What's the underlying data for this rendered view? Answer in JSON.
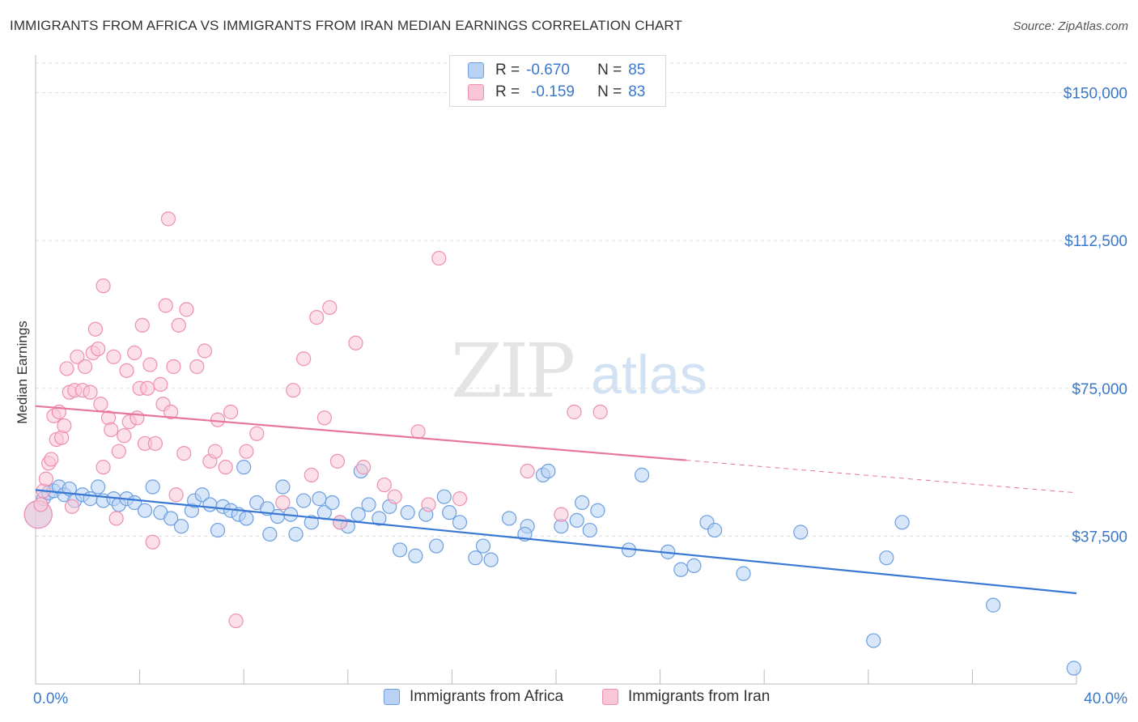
{
  "title": "IMMIGRANTS FROM AFRICA VS IMMIGRANTS FROM IRAN MEDIAN EARNINGS CORRELATION CHART",
  "source": "Source: ZipAtlas.com",
  "watermark": {
    "zip": "ZIP",
    "atlas": "atlas"
  },
  "legend": {
    "r_label": "R =",
    "n_label": "N =",
    "rows": [
      {
        "r": "-0.670",
        "n": "85",
        "fill": "#b8d2f4",
        "stroke": "#6d9fe0"
      },
      {
        "r": "-0.159",
        "n": "83",
        "fill": "#f9c6d6",
        "stroke": "#ee8fb0"
      }
    ]
  },
  "bottom_legend": [
    {
      "label": "Immigrants from Africa",
      "fill": "#b8d2f4",
      "stroke": "#6d9fe0"
    },
    {
      "label": "Immigrants from Iran",
      "fill": "#f9c6d6",
      "stroke": "#ee8fb0"
    }
  ],
  "chart_data": {
    "type": "scatter",
    "title": "IMMIGRANTS FROM AFRICA VS IMMIGRANTS FROM IRAN MEDIAN EARNINGS CORRELATION CHART",
    "xlabel": "",
    "ylabel": "Median Earnings",
    "xlim": [
      0,
      40
    ],
    "ylim": [
      0,
      157500
    ],
    "x_tick_labels": [
      "0.0%",
      "40.0%"
    ],
    "y_ticks": [
      37500,
      75000,
      112500,
      150000
    ],
    "y_tick_labels": [
      "$37,500",
      "$75,000",
      "$112,500",
      "$150,000"
    ],
    "grid": true,
    "legend_position": "top-center",
    "series": [
      {
        "name": "Immigrants from Africa",
        "color": "#3a78d4",
        "marker_fill": "#b8d2f4",
        "marker_stroke": "#6d9fe0",
        "trend": {
          "x": [
            0,
            40
          ],
          "y": [
            49200,
            23000
          ],
          "dashed_from": null
        },
        "points": [
          [
            0.1,
            43000
          ],
          [
            0.3,
            47000
          ],
          [
            0.5,
            48500
          ],
          [
            0.7,
            49000
          ],
          [
            0.9,
            50000
          ],
          [
            1.1,
            48000
          ],
          [
            1.3,
            49500
          ],
          [
            1.5,
            46500
          ],
          [
            1.8,
            48000
          ],
          [
            2.1,
            47000
          ],
          [
            2.4,
            50000
          ],
          [
            2.6,
            46500
          ],
          [
            3.0,
            47000
          ],
          [
            3.2,
            45500
          ],
          [
            3.5,
            47000
          ],
          [
            3.8,
            46000
          ],
          [
            4.2,
            44000
          ],
          [
            4.5,
            50000
          ],
          [
            4.8,
            43500
          ],
          [
            5.2,
            42000
          ],
          [
            5.6,
            40000
          ],
          [
            6.0,
            44000
          ],
          [
            6.1,
            46500
          ],
          [
            6.4,
            48000
          ],
          [
            6.7,
            45500
          ],
          [
            7.0,
            39000
          ],
          [
            7.2,
            45000
          ],
          [
            7.5,
            44000
          ],
          [
            7.8,
            43000
          ],
          [
            8.0,
            55000
          ],
          [
            8.1,
            42000
          ],
          [
            8.5,
            46000
          ],
          [
            8.9,
            44500
          ],
          [
            9.0,
            38000
          ],
          [
            9.3,
            42500
          ],
          [
            9.5,
            50000
          ],
          [
            9.8,
            43000
          ],
          [
            10.0,
            38000
          ],
          [
            10.3,
            46500
          ],
          [
            10.6,
            41000
          ],
          [
            10.9,
            47000
          ],
          [
            11.1,
            43500
          ],
          [
            11.4,
            46000
          ],
          [
            11.7,
            41000
          ],
          [
            12.0,
            40000
          ],
          [
            12.4,
            43000
          ],
          [
            12.5,
            54000
          ],
          [
            12.8,
            45500
          ],
          [
            13.2,
            42000
          ],
          [
            13.6,
            45000
          ],
          [
            14.0,
            34000
          ],
          [
            14.3,
            43500
          ],
          [
            14.6,
            32500
          ],
          [
            15.0,
            43000
          ],
          [
            15.4,
            35000
          ],
          [
            15.7,
            47500
          ],
          [
            15.9,
            43500
          ],
          [
            16.3,
            41000
          ],
          [
            16.9,
            32000
          ],
          [
            17.5,
            31500
          ],
          [
            17.2,
            35000
          ],
          [
            18.2,
            42000
          ],
          [
            18.9,
            40000
          ],
          [
            18.8,
            38000
          ],
          [
            19.5,
            53000
          ],
          [
            19.7,
            54000
          ],
          [
            20.2,
            40000
          ],
          [
            20.8,
            41500
          ],
          [
            21.0,
            46000
          ],
          [
            21.3,
            39000
          ],
          [
            21.6,
            44000
          ],
          [
            22.8,
            34000
          ],
          [
            23.3,
            53000
          ],
          [
            24.3,
            33500
          ],
          [
            24.8,
            29000
          ],
          [
            25.3,
            30000
          ],
          [
            25.8,
            41000
          ],
          [
            26.1,
            39000
          ],
          [
            27.2,
            28000
          ],
          [
            29.4,
            38500
          ],
          [
            32.7,
            32000
          ],
          [
            33.3,
            41000
          ],
          [
            36.8,
            20000
          ],
          [
            32.2,
            11000
          ],
          [
            39.9,
            4000
          ]
        ]
      },
      {
        "name": "Immigrants from Iran",
        "color": "#e8769c",
        "marker_fill": "#f9c6d6",
        "marker_stroke": "#ee8fb0",
        "trend": {
          "x": [
            0,
            40
          ],
          "y": [
            70500,
            48500
          ],
          "dashed_from": 25
        },
        "points": [
          [
            0.1,
            43000
          ],
          [
            0.2,
            45500
          ],
          [
            0.3,
            49000
          ],
          [
            0.4,
            52000
          ],
          [
            0.5,
            56000
          ],
          [
            0.6,
            57000
          ],
          [
            0.7,
            68000
          ],
          [
            0.8,
            62000
          ],
          [
            0.9,
            69000
          ],
          [
            1.0,
            62500
          ],
          [
            1.1,
            65500
          ],
          [
            1.2,
            80000
          ],
          [
            1.3,
            74000
          ],
          [
            1.4,
            45000
          ],
          [
            1.5,
            74500
          ],
          [
            1.6,
            83000
          ],
          [
            1.8,
            74500
          ],
          [
            1.9,
            80500
          ],
          [
            2.1,
            74000
          ],
          [
            2.2,
            84000
          ],
          [
            2.3,
            90000
          ],
          [
            2.4,
            85000
          ],
          [
            2.5,
            71000
          ],
          [
            2.6,
            55000
          ],
          [
            2.6,
            101000
          ],
          [
            2.8,
            67500
          ],
          [
            2.9,
            64500
          ],
          [
            3.0,
            83000
          ],
          [
            3.1,
            42000
          ],
          [
            3.2,
            59000
          ],
          [
            3.4,
            63000
          ],
          [
            3.5,
            79500
          ],
          [
            3.6,
            66500
          ],
          [
            3.8,
            84000
          ],
          [
            3.9,
            67500
          ],
          [
            4.0,
            75000
          ],
          [
            4.1,
            91000
          ],
          [
            4.2,
            61000
          ],
          [
            4.3,
            75000
          ],
          [
            4.4,
            81000
          ],
          [
            4.5,
            36000
          ],
          [
            4.6,
            61000
          ],
          [
            4.8,
            76000
          ],
          [
            4.9,
            71000
          ],
          [
            5.0,
            96000
          ],
          [
            5.1,
            118000
          ],
          [
            5.2,
            69000
          ],
          [
            5.3,
            80500
          ],
          [
            5.4,
            48000
          ],
          [
            5.5,
            91000
          ],
          [
            5.7,
            58500
          ],
          [
            5.8,
            95000
          ],
          [
            6.2,
            80500
          ],
          [
            6.5,
            84500
          ],
          [
            6.7,
            56500
          ],
          [
            6.9,
            59000
          ],
          [
            7.0,
            67000
          ],
          [
            7.3,
            55000
          ],
          [
            7.5,
            69000
          ],
          [
            7.7,
            16000
          ],
          [
            8.1,
            59000
          ],
          [
            8.5,
            63500
          ],
          [
            9.5,
            46000
          ],
          [
            9.9,
            74500
          ],
          [
            10.3,
            82500
          ],
          [
            10.6,
            53000
          ],
          [
            10.8,
            93000
          ],
          [
            11.1,
            67500
          ],
          [
            11.3,
            95500
          ],
          [
            11.6,
            56500
          ],
          [
            11.7,
            41000
          ],
          [
            12.3,
            86500
          ],
          [
            12.6,
            55000
          ],
          [
            13.4,
            50500
          ],
          [
            13.8,
            47500
          ],
          [
            14.7,
            64000
          ],
          [
            15.1,
            45500
          ],
          [
            15.5,
            108000
          ],
          [
            16.3,
            47000
          ],
          [
            18.9,
            54000
          ],
          [
            20.2,
            43000
          ],
          [
            20.7,
            69000
          ],
          [
            21.7,
            69000
          ]
        ]
      }
    ]
  }
}
